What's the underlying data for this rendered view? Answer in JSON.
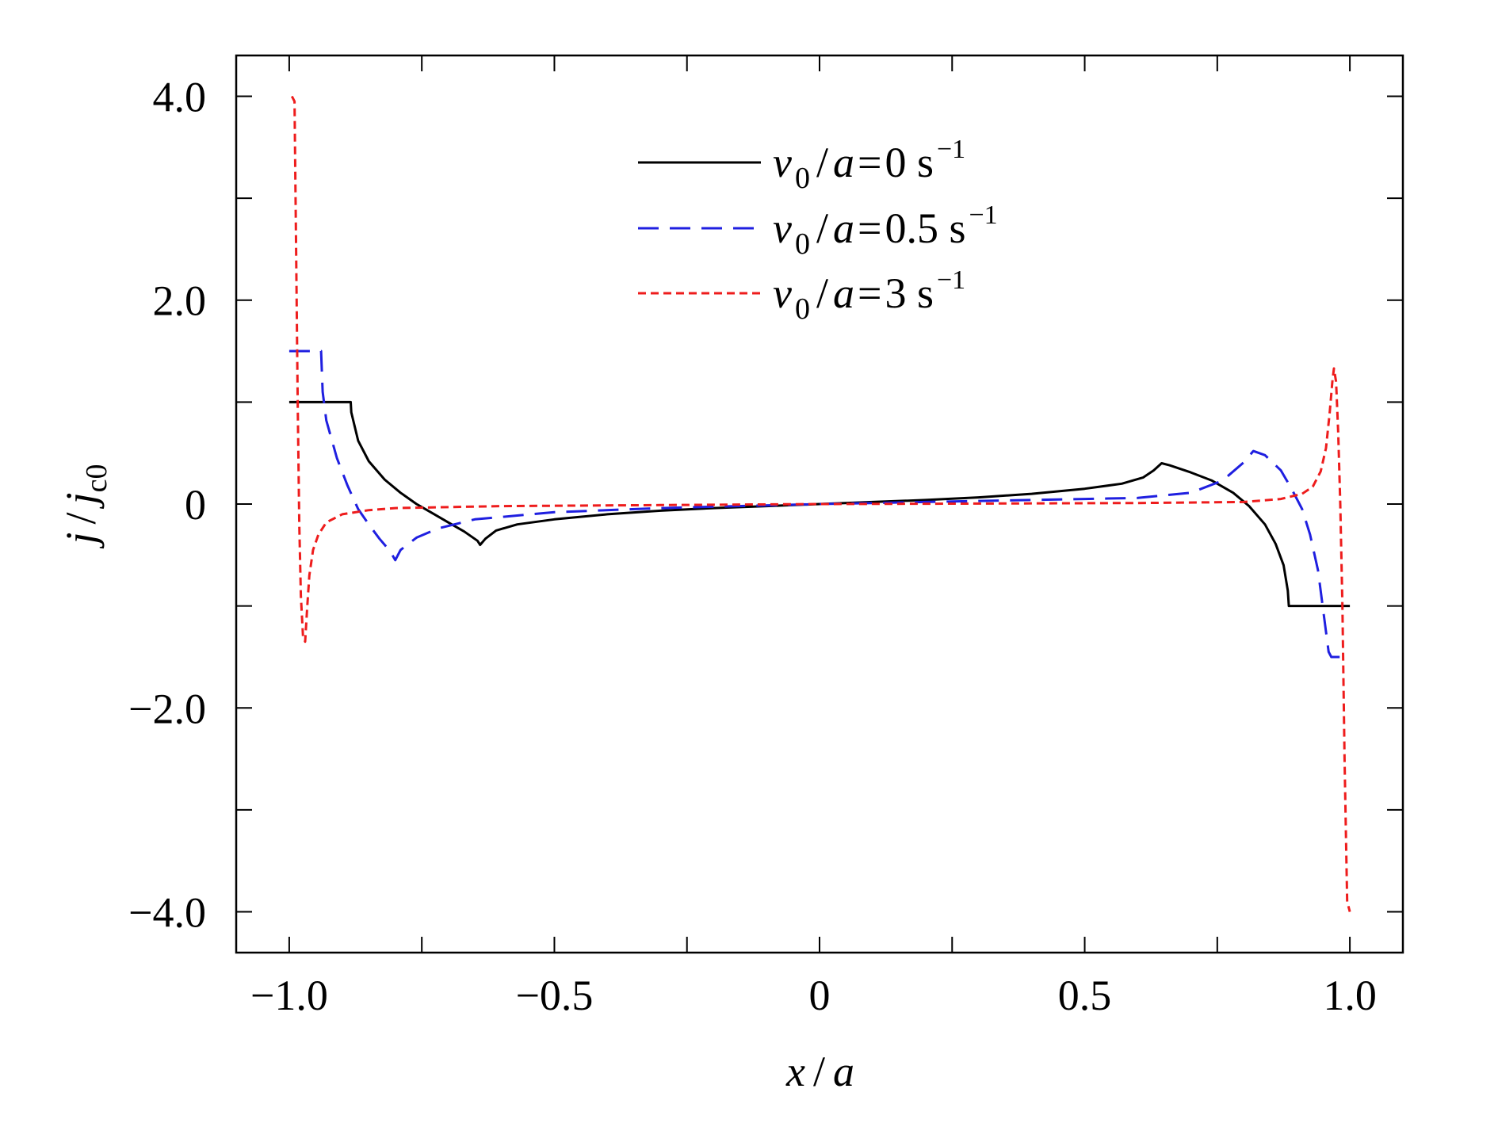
{
  "chart_data": {
    "type": "line",
    "xlabel": {
      "italic_1": "x",
      "slash": "/",
      "italic_2": "a"
    },
    "ylabel": {
      "italic_1": "j",
      "slash": "/",
      "italic_2": "j",
      "subscript": "c0"
    },
    "xlim": [
      -1.1,
      1.1
    ],
    "ylim": [
      -4.4,
      4.4
    ],
    "x_ticks": [
      -1.0,
      -0.75,
      -0.5,
      -0.25,
      0,
      0.25,
      0.5,
      0.75,
      1.0
    ],
    "x_tick_labels": [
      {
        "value": -1.0,
        "label": "−1.0"
      },
      {
        "value": -0.5,
        "label": "−0.5"
      },
      {
        "value": 0,
        "label": "0"
      },
      {
        "value": 0.5,
        "label": "0.5"
      },
      {
        "value": 1.0,
        "label": "1.0"
      }
    ],
    "y_ticks": [
      -4.0,
      -3.0,
      -2.0,
      -1.0,
      0,
      1.0,
      2.0,
      3.0,
      4.0
    ],
    "y_tick_labels": [
      {
        "value": 4.0,
        "label": "4.0"
      },
      {
        "value": 2.0,
        "label": "2.0"
      },
      {
        "value": 0,
        "label": "0"
      },
      {
        "value": -2.0,
        "label": "−2.0"
      },
      {
        "value": -4.0,
        "label": "−4.0"
      }
    ],
    "grid": false,
    "legend_position": "top-center",
    "series": [
      {
        "name": "v0/a=0 s−1",
        "legend": {
          "v": "v",
          "sub": "0",
          "mid": "/",
          "a": "a",
          "eq": "=",
          "val": "0 s",
          "sup": "−1"
        },
        "color": "#000000",
        "dash": "solid",
        "points": [
          [
            -1.0,
            1.0
          ],
          [
            -0.884,
            1.0
          ],
          [
            -0.883,
            0.9
          ],
          [
            -0.87,
            0.62
          ],
          [
            -0.85,
            0.42
          ],
          [
            -0.82,
            0.24
          ],
          [
            -0.79,
            0.11
          ],
          [
            -0.76,
            0.0
          ],
          [
            -0.73,
            -0.09
          ],
          [
            -0.7,
            -0.18
          ],
          [
            -0.67,
            -0.27
          ],
          [
            -0.645,
            -0.36
          ],
          [
            -0.64,
            -0.4
          ],
          [
            -0.63,
            -0.34
          ],
          [
            -0.61,
            -0.26
          ],
          [
            -0.57,
            -0.2
          ],
          [
            -0.5,
            -0.15
          ],
          [
            -0.4,
            -0.1
          ],
          [
            -0.3,
            -0.065
          ],
          [
            -0.2,
            -0.04
          ],
          [
            -0.1,
            -0.02
          ],
          [
            0.0,
            0.0
          ],
          [
            0.1,
            0.02
          ],
          [
            0.2,
            0.04
          ],
          [
            0.3,
            0.065
          ],
          [
            0.4,
            0.1
          ],
          [
            0.5,
            0.15
          ],
          [
            0.57,
            0.2
          ],
          [
            0.61,
            0.26
          ],
          [
            0.63,
            0.33
          ],
          [
            0.645,
            0.4
          ],
          [
            0.66,
            0.38
          ],
          [
            0.7,
            0.31
          ],
          [
            0.74,
            0.23
          ],
          [
            0.78,
            0.11
          ],
          [
            0.81,
            -0.02
          ],
          [
            0.84,
            -0.2
          ],
          [
            0.86,
            -0.39
          ],
          [
            0.875,
            -0.6
          ],
          [
            0.883,
            -0.85
          ],
          [
            0.885,
            -1.0
          ],
          [
            1.0,
            -1.0
          ]
        ]
      },
      {
        "name": "v0/a=0.5 s−1",
        "legend": {
          "v": "v",
          "sub": "0",
          "mid": "/",
          "a": "a",
          "eq": "=",
          "val": "0.5 s",
          "sup": "−1"
        },
        "color": "#1f1fe0",
        "dash": "dashed",
        "points": [
          [
            -1.0,
            1.5
          ],
          [
            -0.94,
            1.5
          ],
          [
            -0.937,
            1.1
          ],
          [
            -0.93,
            0.82
          ],
          [
            -0.91,
            0.45
          ],
          [
            -0.89,
            0.18
          ],
          [
            -0.87,
            -0.05
          ],
          [
            -0.85,
            -0.2
          ],
          [
            -0.83,
            -0.34
          ],
          [
            -0.81,
            -0.46
          ],
          [
            -0.8,
            -0.55
          ],
          [
            -0.79,
            -0.45
          ],
          [
            -0.76,
            -0.33
          ],
          [
            -0.72,
            -0.24
          ],
          [
            -0.65,
            -0.15
          ],
          [
            -0.5,
            -0.08
          ],
          [
            -0.3,
            -0.04
          ],
          [
            0.0,
            0.0
          ],
          [
            0.3,
            0.03
          ],
          [
            0.5,
            0.05
          ],
          [
            0.6,
            0.06
          ],
          [
            0.7,
            0.11
          ],
          [
            0.76,
            0.23
          ],
          [
            0.8,
            0.41
          ],
          [
            0.818,
            0.52
          ],
          [
            0.84,
            0.48
          ],
          [
            0.87,
            0.33
          ],
          [
            0.89,
            0.15
          ],
          [
            0.91,
            -0.05
          ],
          [
            0.925,
            -0.3
          ],
          [
            0.94,
            -0.65
          ],
          [
            0.95,
            -1.05
          ],
          [
            0.96,
            -1.45
          ],
          [
            0.965,
            -1.5
          ],
          [
            1.0,
            -1.5
          ]
        ]
      },
      {
        "name": "v0/a=3 s−1",
        "legend": {
          "v": "v",
          "sub": "0",
          "mid": "/",
          "a": "a",
          "eq": "=",
          "val": "3 s",
          "sup": "−1"
        },
        "color": "#ee1c1c",
        "dash": "dotted",
        "points": [
          [
            -0.995,
            4.0
          ],
          [
            -0.99,
            3.95
          ],
          [
            -0.987,
            2.5
          ],
          [
            -0.984,
            1.0
          ],
          [
            -0.981,
            -0.2
          ],
          [
            -0.978,
            -0.9
          ],
          [
            -0.974,
            -1.3
          ],
          [
            -0.97,
            -1.35
          ],
          [
            -0.966,
            -1.0
          ],
          [
            -0.962,
            -0.7
          ],
          [
            -0.955,
            -0.45
          ],
          [
            -0.945,
            -0.3
          ],
          [
            -0.93,
            -0.18
          ],
          [
            -0.9,
            -0.1
          ],
          [
            -0.85,
            -0.06
          ],
          [
            -0.8,
            -0.04
          ],
          [
            -0.6,
            -0.02
          ],
          [
            -0.3,
            -0.01
          ],
          [
            0.0,
            0.0
          ],
          [
            0.3,
            0.005
          ],
          [
            0.6,
            0.01
          ],
          [
            0.8,
            0.02
          ],
          [
            0.87,
            0.05
          ],
          [
            0.91,
            0.1
          ],
          [
            0.93,
            0.17
          ],
          [
            0.945,
            0.32
          ],
          [
            0.955,
            0.55
          ],
          [
            0.962,
            0.9
          ],
          [
            0.967,
            1.2
          ],
          [
            0.97,
            1.33
          ],
          [
            0.974,
            1.2
          ],
          [
            0.978,
            0.7
          ],
          [
            0.982,
            0.0
          ],
          [
            0.986,
            -1.0
          ],
          [
            0.99,
            -2.5
          ],
          [
            0.995,
            -3.9
          ],
          [
            1.0,
            -4.0
          ]
        ]
      }
    ]
  }
}
